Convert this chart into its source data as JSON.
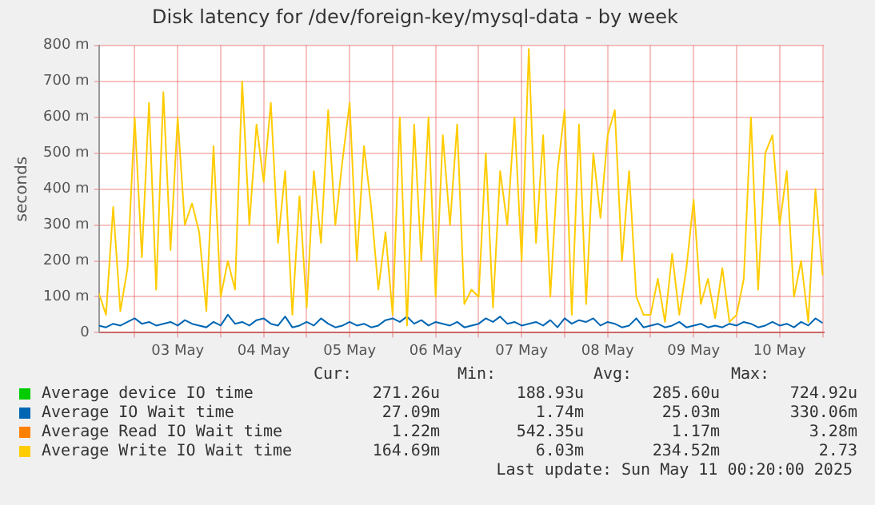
{
  "chart_data": {
    "type": "line",
    "title": "Disk latency for /dev/foreign-key/mysql-data - by week",
    "ylabel": "seconds",
    "x": [
      "2025-05-02T14:00",
      "2025-05-02T16:00",
      "2025-05-02T18:00",
      "2025-05-02T20:00",
      "2025-05-02T22:00",
      "2025-05-03T00:00",
      "2025-05-03T02:00",
      "2025-05-03T04:00",
      "2025-05-03T06:00",
      "2025-05-03T08:00",
      "2025-05-03T10:00",
      "2025-05-03T12:00",
      "2025-05-03T14:00",
      "2025-05-03T16:00",
      "2025-05-03T18:00",
      "2025-05-03T20:00",
      "2025-05-03T22:00",
      "2025-05-04T00:00",
      "2025-05-04T02:00",
      "2025-05-04T04:00",
      "2025-05-04T06:00",
      "2025-05-04T08:00",
      "2025-05-04T10:00",
      "2025-05-04T12:00",
      "2025-05-04T14:00",
      "2025-05-04T16:00",
      "2025-05-04T18:00",
      "2025-05-04T20:00",
      "2025-05-04T22:00",
      "2025-05-05T00:00",
      "2025-05-05T02:00",
      "2025-05-05T04:00",
      "2025-05-05T06:00",
      "2025-05-05T08:00",
      "2025-05-05T10:00",
      "2025-05-05T12:00",
      "2025-05-05T14:00",
      "2025-05-05T16:00",
      "2025-05-05T18:00",
      "2025-05-05T20:00",
      "2025-05-05T22:00",
      "2025-05-06T00:00",
      "2025-05-06T02:00",
      "2025-05-06T04:00",
      "2025-05-06T06:00",
      "2025-05-06T08:00",
      "2025-05-06T10:00",
      "2025-05-06T12:00",
      "2025-05-06T14:00",
      "2025-05-06T16:00",
      "2025-05-06T18:00",
      "2025-05-06T20:00",
      "2025-05-06T22:00",
      "2025-05-07T00:00",
      "2025-05-07T02:00",
      "2025-05-07T04:00",
      "2025-05-07T06:00",
      "2025-05-07T08:00",
      "2025-05-07T10:00",
      "2025-05-07T12:00",
      "2025-05-07T14:00",
      "2025-05-07T16:00",
      "2025-05-07T18:00",
      "2025-05-07T20:00",
      "2025-05-07T22:00",
      "2025-05-08T00:00",
      "2025-05-08T02:00",
      "2025-05-08T04:00",
      "2025-05-08T06:00",
      "2025-05-08T08:00",
      "2025-05-08T10:00",
      "2025-05-08T12:00",
      "2025-05-08T14:00",
      "2025-05-08T16:00",
      "2025-05-08T18:00",
      "2025-05-08T20:00",
      "2025-05-08T22:00",
      "2025-05-09T00:00",
      "2025-05-09T02:00",
      "2025-05-09T04:00",
      "2025-05-09T06:00",
      "2025-05-09T08:00",
      "2025-05-09T10:00",
      "2025-05-09T12:00",
      "2025-05-09T14:00",
      "2025-05-09T16:00",
      "2025-05-09T18:00",
      "2025-05-09T20:00",
      "2025-05-09T22:00",
      "2025-05-10T00:00",
      "2025-05-10T02:00",
      "2025-05-10T04:00",
      "2025-05-10T06:00",
      "2025-05-10T08:00",
      "2025-05-10T10:00",
      "2025-05-10T12:00",
      "2025-05-10T14:00",
      "2025-05-10T16:00",
      "2025-05-10T18:00",
      "2025-05-10T20:00",
      "2025-05-10T22:00",
      "2025-05-11T00:00"
    ],
    "series": [
      {
        "name": "Average device IO time",
        "color": "#00cc00",
        "values": [
          null,
          null,
          null,
          null,
          null,
          null,
          null,
          null,
          null,
          null,
          null,
          null,
          null,
          null,
          null,
          null,
          null,
          null,
          null,
          null,
          null,
          null,
          null,
          null,
          null,
          null,
          null,
          null,
          null,
          null,
          null,
          null,
          null,
          null,
          null,
          null,
          null,
          null,
          null,
          null,
          null,
          null,
          null,
          null,
          null,
          null,
          null,
          null,
          null,
          null,
          null,
          null,
          null,
          null,
          null,
          null,
          null,
          null,
          null,
          null,
          null,
          null,
          null,
          null,
          null,
          null,
          null,
          null,
          null,
          null,
          null,
          null,
          null,
          null,
          null,
          null,
          null,
          null,
          null,
          null,
          null,
          null,
          null,
          null,
          null,
          null,
          null,
          null,
          null,
          null,
          null,
          null,
          null,
          null,
          null,
          null,
          null,
          null,
          null,
          null,
          null,
          null
        ]
      },
      {
        "name": "Average Read IO Wait time",
        "color": "#ff8000",
        "values": [
          null,
          null,
          null,
          null,
          null,
          null,
          null,
          null,
          null,
          null,
          null,
          null,
          null,
          null,
          null,
          null,
          null,
          null,
          null,
          null,
          null,
          null,
          null,
          null,
          null,
          null,
          null,
          null,
          null,
          null,
          null,
          null,
          null,
          null,
          null,
          null,
          null,
          null,
          null,
          null,
          null,
          null,
          null,
          null,
          null,
          null,
          null,
          null,
          null,
          null,
          null,
          null,
          null,
          null,
          null,
          null,
          null,
          null,
          null,
          null,
          null,
          null,
          null,
          null,
          null,
          null,
          null,
          null,
          null,
          null,
          null,
          null,
          null,
          null,
          null,
          null,
          null,
          null,
          null,
          null,
          null,
          null,
          null,
          null,
          null,
          null,
          null,
          null,
          null,
          null,
          null,
          null,
          null,
          null,
          null,
          null,
          null,
          null,
          null,
          null,
          null,
          null
        ]
      },
      {
        "name": "Average Write IO Wait time",
        "color": "#ffcc00",
        "values": [
          110,
          50,
          350,
          60,
          180,
          600,
          210,
          640,
          120,
          670,
          230,
          600,
          300,
          360,
          280,
          60,
          520,
          100,
          200,
          120,
          700,
          300,
          580,
          420,
          640,
          250,
          450,
          50,
          380,
          70,
          450,
          250,
          620,
          300,
          480,
          640,
          200,
          520,
          350,
          120,
          280,
          50,
          600,
          20,
          580,
          200,
          600,
          100,
          550,
          300,
          580,
          80,
          120,
          100,
          500,
          70,
          450,
          300,
          600,
          200,
          790,
          250,
          550,
          100,
          450,
          620,
          50,
          580,
          80,
          500,
          320,
          550,
          620,
          200,
          450,
          100,
          50,
          50,
          150,
          30,
          220,
          50,
          180,
          370,
          80,
          150,
          40,
          180,
          30,
          50,
          150,
          600,
          120,
          500,
          550,
          300,
          450,
          100,
          200,
          30,
          400,
          160
        ]
      },
      {
        "name": "Average IO Wait time",
        "color": "#0066b3",
        "values": [
          20,
          15,
          25,
          20,
          30,
          40,
          25,
          30,
          20,
          25,
          30,
          20,
          35,
          25,
          20,
          15,
          30,
          20,
          50,
          25,
          30,
          20,
          35,
          40,
          25,
          20,
          45,
          15,
          20,
          30,
          20,
          40,
          25,
          15,
          20,
          30,
          20,
          25,
          15,
          20,
          35,
          40,
          30,
          45,
          25,
          35,
          20,
          30,
          25,
          20,
          30,
          15,
          20,
          25,
          40,
          30,
          45,
          25,
          30,
          20,
          25,
          30,
          20,
          35,
          15,
          40,
          25,
          35,
          30,
          40,
          20,
          30,
          25,
          15,
          20,
          40,
          15,
          20,
          25,
          15,
          20,
          30,
          15,
          20,
          25,
          15,
          20,
          15,
          25,
          20,
          30,
          25,
          15,
          20,
          30,
          20,
          25,
          15,
          30,
          20,
          40,
          27
        ]
      }
    ],
    "xlim": [
      "2025-05-02T14:00",
      "2025-05-11T00:20"
    ],
    "xticks": [
      {
        "value": "2025-05-03",
        "label": null
      },
      {
        "value": "2025-05-03T12:00",
        "label": "03 May"
      },
      {
        "value": "2025-05-04",
        "label": null
      },
      {
        "value": "2025-05-04T12:00",
        "label": "04 May"
      },
      {
        "value": "2025-05-05",
        "label": null
      },
      {
        "value": "2025-05-05T12:00",
        "label": "05 May"
      },
      {
        "value": "2025-05-06",
        "label": null
      },
      {
        "value": "2025-05-06T12:00",
        "label": "06 May"
      },
      {
        "value": "2025-05-07",
        "label": null
      },
      {
        "value": "2025-05-07T12:00",
        "label": "07 May"
      },
      {
        "value": "2025-05-08",
        "label": null
      },
      {
        "value": "2025-05-08T12:00",
        "label": "08 May"
      },
      {
        "value": "2025-05-09",
        "label": null
      },
      {
        "value": "2025-05-09T12:00",
        "label": "09 May"
      },
      {
        "value": "2025-05-10",
        "label": null
      },
      {
        "value": "2025-05-10T12:00",
        "label": "10 May"
      },
      {
        "value": "2025-05-11",
        "label": null
      }
    ],
    "ylim": [
      0,
      800
    ],
    "yticks": [
      0,
      {
        "value": 100,
        "label": "100 m"
      },
      {
        "value": 200,
        "label": "200 m"
      },
      {
        "value": 300,
        "label": "300 m"
      },
      {
        "value": 400,
        "label": "400 m"
      },
      {
        "value": 500,
        "label": "500 m"
      },
      {
        "value": 600,
        "label": "600 m"
      },
      {
        "value": 700,
        "label": "700 m"
      },
      {
        "value": 800,
        "label": "800 m"
      }
    ],
    "grid": true,
    "legend": "bottom",
    "marker": "none",
    "line_style": "solid",
    "annotations": [
      "Cur:",
      "Min:",
      "Avg:",
      "Max:",
      "271.26u",
      "188.93u",
      "285.60u",
      "724.92u",
      "1.22m",
      "542.35u",
      "1.17m",
      "3.28m",
      "164.69m",
      "6.03m",
      "234.52m",
      "2.73",
      "27.09m",
      "1.74m",
      "25.03m",
      "330.06m",
      "Last update: Sun May 11 00:20:00 2025"
    ]
  }
}
